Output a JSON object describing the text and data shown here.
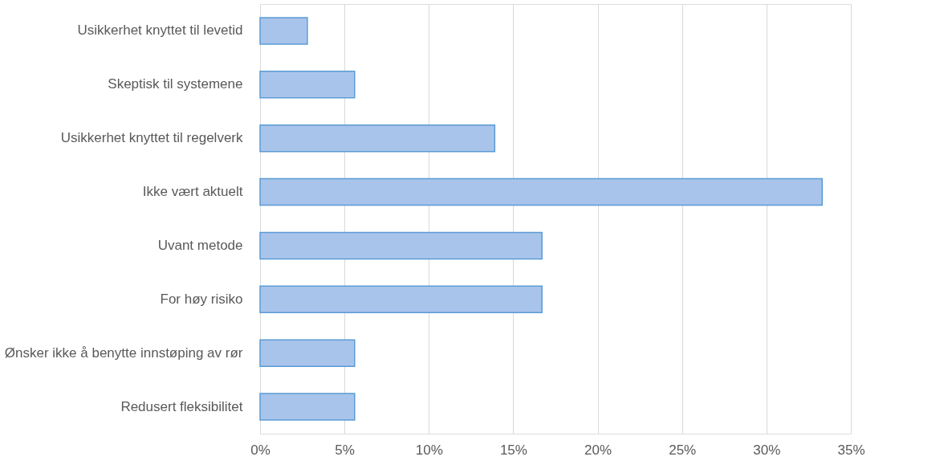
{
  "chart_data": {
    "type": "bar",
    "orientation": "horizontal",
    "categories": [
      "Usikkerhet knyttet til levetid",
      "Skeptisk til systemene",
      "Usikkerhet knyttet til regelverk",
      "Ikke vært aktuelt",
      "Uvant metode",
      "For høy risiko",
      "Ønsker ikke å benytte innstøping av rør",
      "Redusert fleksibilitet"
    ],
    "values": [
      2.8,
      5.6,
      13.9,
      33.3,
      16.7,
      16.7,
      5.6,
      5.6
    ],
    "color": "#a9c4eb",
    "xlim": [
      0,
      35
    ],
    "xticks": [
      {
        "value": 0,
        "label": "0%"
      },
      {
        "value": 5,
        "label": "5%"
      },
      {
        "value": 10,
        "label": "10%"
      },
      {
        "value": 15,
        "label": "15%"
      },
      {
        "value": 20,
        "label": "20%"
      },
      {
        "value": 25,
        "label": "25%"
      },
      {
        "value": 30,
        "label": "30%"
      },
      {
        "value": 35,
        "label": "35%"
      }
    ],
    "grid": "x"
  }
}
